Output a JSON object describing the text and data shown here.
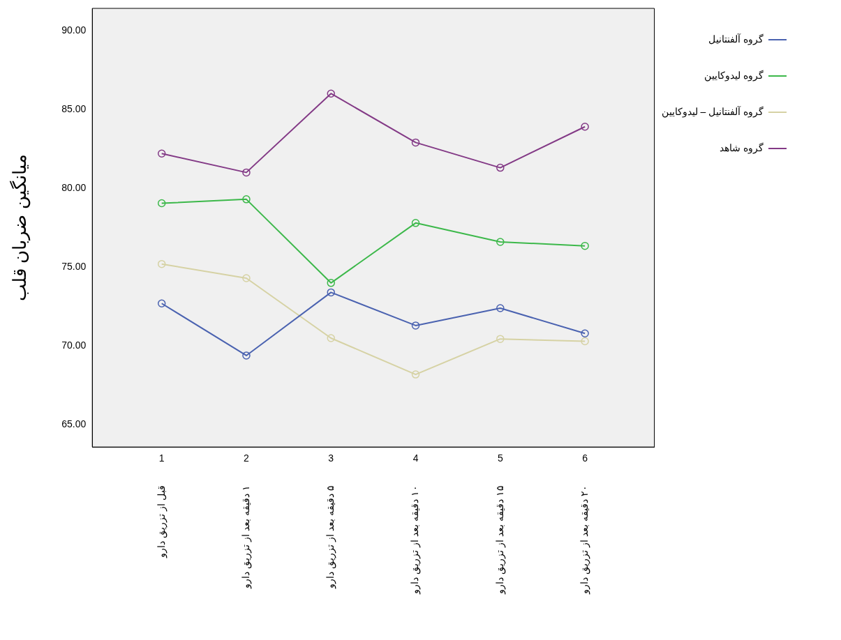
{
  "chart_data": {
    "type": "line",
    "ylabel": "میانگین ضربان قلب",
    "x": [
      1,
      2,
      3,
      4,
      5,
      6
    ],
    "xlim": [
      0.18,
      6.82
    ],
    "xticks": [
      1,
      2,
      3,
      4,
      5,
      6
    ],
    "ylim": [
      63.6,
      91.4
    ],
    "yticks": [
      {
        "value": 65,
        "label": "65.00"
      },
      {
        "value": 70,
        "label": "70.00"
      },
      {
        "value": 75,
        "label": "75.00"
      },
      {
        "value": 80,
        "label": "80.00"
      },
      {
        "value": 85,
        "label": "85.00"
      },
      {
        "value": 90,
        "label": "90.00"
      }
    ],
    "grid": false,
    "legend": "right",
    "marker": "circle",
    "line_style": "solid",
    "series": [
      {
        "name": "گروه آلفنتانیل",
        "color": "#4a62b0",
        "values": [
          72.7,
          69.4,
          73.4,
          71.3,
          72.4,
          70.8
        ]
      },
      {
        "name": "گروه لیدوکایین",
        "color": "#3cb84a",
        "values": [
          79.05,
          79.3,
          74.0,
          77.8,
          76.6,
          76.35
        ]
      },
      {
        "name": "گروه آلفنتانیل – لیدوکایین",
        "color": "#d6d2a4",
        "values": [
          75.2,
          74.3,
          70.5,
          68.2,
          70.45,
          70.3
        ]
      },
      {
        "name": "گروه شاهد",
        "color": "#833a86",
        "values": [
          82.2,
          81.0,
          86.0,
          82.9,
          81.3,
          83.9
        ]
      }
    ],
    "annotations": [
      "قبل از تزریق دارو",
      "۱ دقیقه بعد از تزریق دارو",
      "۵ دقیقه بعد از تزریق دارو",
      "۱۰ دقیقه بعد از تزریق دارو",
      "۱۵ دقیقه بعد از تزریق دارو",
      "۲۰ دقیقه بعد از تزریق دارو"
    ]
  }
}
